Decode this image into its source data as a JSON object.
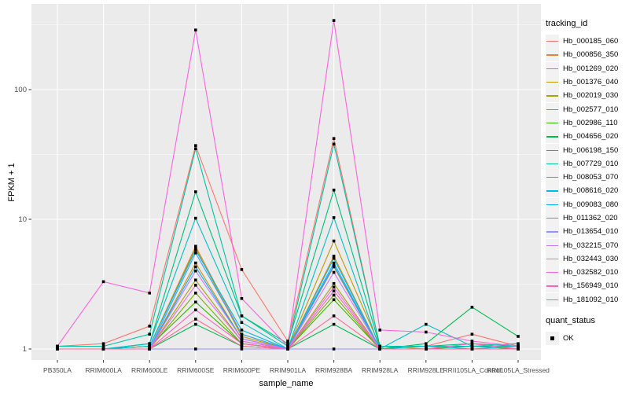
{
  "figure": {
    "background": "#FFFFFF",
    "panel_bg": "#EBEBEB",
    "grid_color": "#FFFFFF",
    "tick_label_color": "#4D4D4D",
    "tick_mark_color": "#333333"
  },
  "legend": {
    "tracking_title": "tracking_id",
    "quant_title": "quant_status",
    "quant_items": [
      {
        "label": "OK",
        "marker": "black-square",
        "color": "#000000"
      }
    ],
    "key_bg": "#F2F2F2"
  },
  "chart_data": {
    "type": "line",
    "x_type": "categorical",
    "y_scale": "log10",
    "xlabel": "sample_name",
    "ylabel": "FPKM + 1",
    "ylim": [
      0.82,
      460
    ],
    "grid": true,
    "legend_position": "right",
    "point_marker": {
      "shape": "square",
      "color": "#000000",
      "size": 3.6
    },
    "y_ticks": [
      {
        "label": "1",
        "value": 1
      },
      {
        "label": "10",
        "value": 10
      },
      {
        "label": "100",
        "value": 100
      }
    ],
    "y_minor_values": [
      3.162,
      31.62,
      316.2
    ],
    "categories": [
      "PB350LA",
      "RRIM600LA",
      "RRIM600LE",
      "RRIM600SE",
      "RRIM600PE",
      "RRIM901LA",
      "RRIM928BA",
      "RRIM928LA",
      "RRIM928LE",
      "RRII105LA_Control",
      "RRII105LA_Stressed"
    ],
    "series": [
      {
        "name": "Hb_000185_060",
        "color": "#F8766D",
        "values": [
          1.05,
          1.1,
          1.5,
          37,
          4.1,
          1.15,
          42,
          1.05,
          1.05,
          1.3,
          1.05
        ]
      },
      {
        "name": "Hb_000856_350",
        "color": "#EA8331",
        "values": [
          1,
          1,
          1.05,
          6.2,
          1.3,
          1,
          4.3,
          1,
          1,
          1.05,
          1
        ]
      },
      {
        "name": "Hb_001269_020",
        "color": "#D89000",
        "values": [
          1,
          1,
          1,
          4.6,
          1.2,
          1,
          5.2,
          1,
          1,
          1,
          1
        ]
      },
      {
        "name": "Hb_001376_040",
        "color": "#C09B00",
        "values": [
          1,
          1,
          1.05,
          6.0,
          1.25,
          1,
          6.8,
          1.05,
          1,
          1,
          1
        ]
      },
      {
        "name": "Hb_002019_030",
        "color": "#A3A500",
        "values": [
          1,
          1,
          1,
          3.4,
          1.15,
          1,
          3.2,
          1,
          1,
          1,
          1
        ]
      },
      {
        "name": "Hb_002577_010",
        "color": "#7CAE00",
        "values": [
          1,
          1,
          1,
          2.7,
          1.1,
          1,
          2.6,
          1,
          1,
          1,
          1
        ]
      },
      {
        "name": "Hb_002986_110",
        "color": "#39B600",
        "values": [
          1,
          1,
          1.05,
          2.3,
          1.1,
          1,
          2.4,
          1,
          1,
          1.05,
          1
        ]
      },
      {
        "name": "Hb_004656_020",
        "color": "#00BB4E",
        "values": [
          1,
          1,
          1,
          1.55,
          1.05,
          1,
          1.55,
          1,
          1.1,
          2.1,
          1.25
        ]
      },
      {
        "name": "Hb_006198_150",
        "color": "#00BF7D",
        "values": [
          1,
          1,
          1.1,
          16.3,
          1.8,
          1.1,
          16.8,
          1.05,
          1.05,
          1.1,
          1.05
        ]
      },
      {
        "name": "Hb_007729_010",
        "color": "#00C1A3",
        "values": [
          1.05,
          1.05,
          1.3,
          35,
          1.8,
          1.05,
          38,
          1.05,
          1.05,
          1.05,
          1.05
        ]
      },
      {
        "name": "Hb_008053_070",
        "color": "#00BFC4",
        "values": [
          1,
          1,
          1.1,
          10.2,
          1.6,
          1,
          10.3,
          1,
          1.55,
          1.05,
          1.1
        ]
      },
      {
        "name": "Hb_008616_020",
        "color": "#00BAE0",
        "values": [
          1,
          1,
          1.05,
          5.8,
          1.4,
          1,
          5.0,
          1,
          1.05,
          1,
          1.05
        ]
      },
      {
        "name": "Hb_009083_080",
        "color": "#00B0F6",
        "values": [
          1,
          1,
          1,
          4.3,
          1.2,
          1,
          4.4,
          1,
          1,
          1,
          1
        ]
      },
      {
        "name": "Hb_011362_020",
        "color": "#35A2FF",
        "values": [
          1,
          1,
          1,
          5.5,
          1.3,
          1,
          4.6,
          1,
          1,
          1,
          1
        ]
      },
      {
        "name": "Hb_013654_010",
        "color": "#9590FF",
        "values": [
          1,
          1,
          1,
          1,
          1,
          1,
          1,
          1,
          1,
          1,
          1
        ]
      },
      {
        "name": "Hb_032215_070",
        "color": "#C77CFF",
        "values": [
          1,
          1,
          1,
          4.0,
          1.2,
          1,
          3.9,
          1,
          1,
          1,
          1
        ]
      },
      {
        "name": "Hb_032443_030",
        "color": "#E76BF3",
        "values": [
          1,
          1,
          1,
          3.1,
          1.15,
          1,
          3.0,
          1,
          1,
          1,
          1
        ]
      },
      {
        "name": "Hb_032582_010",
        "color": "#FA62DB",
        "values": [
          1.05,
          3.3,
          2.7,
          288,
          2.45,
          1.05,
          341,
          1.4,
          1.35,
          1.15,
          1.05
        ]
      },
      {
        "name": "Hb_156949_010",
        "color": "#FF62BC",
        "values": [
          1,
          1,
          1,
          2.0,
          1.1,
          1,
          2.8,
          1,
          1,
          1.1,
          1
        ]
      },
      {
        "name": "Hb_181092_010",
        "color": "#FF6A98",
        "values": [
          1,
          1,
          1,
          1.7,
          1.05,
          1,
          1.8,
          1,
          1,
          1,
          1
        ]
      }
    ]
  }
}
